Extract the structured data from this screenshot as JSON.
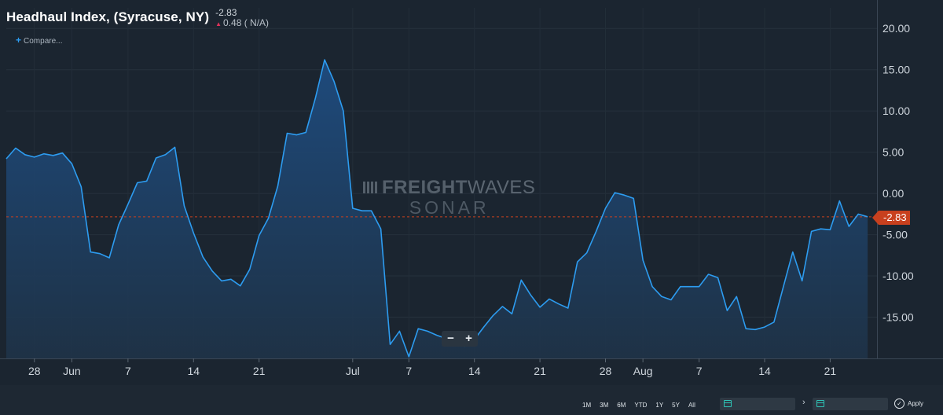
{
  "header": {
    "title": "Headhaul Index, (Syracuse, NY)",
    "last_value": "-2.83",
    "change": "0.48 ( N/A)",
    "compare_label": "Compare..."
  },
  "watermark": {
    "line1_bold": "FREIGHT",
    "line1_light": "WAVES",
    "line2": "SONAR"
  },
  "zoom": {
    "minus": "−",
    "plus": "+"
  },
  "last_badge": "-2.83",
  "toolbar": {
    "ranges": [
      "1M",
      "3M",
      "6M",
      "YTD",
      "1Y",
      "5Y",
      "All"
    ],
    "date_separator": "›",
    "apply_label": "Apply"
  },
  "colors": {
    "background": "#1b2530",
    "line": "#2d9cf0",
    "area_top": "#1e4c80",
    "area_bottom": "#1f3348",
    "last_value_line": "#c8401e",
    "badge": "#c8401e"
  },
  "chart_data": {
    "type": "area",
    "title": "Headhaul Index, (Syracuse, NY)",
    "xlabel": "",
    "ylabel": "",
    "ylim": [
      -20,
      22.5
    ],
    "grid": true,
    "y_ticks": [
      20,
      15,
      10,
      5,
      0,
      -5,
      -10,
      -15
    ],
    "y_tick_labels": [
      "20.00",
      "15.00",
      "10.00",
      "5.00",
      "0.00",
      "-5.00",
      "-10.00",
      "-15.00"
    ],
    "x_range": [
      "2019-05-25",
      "2019-08-26"
    ],
    "x_ticks": [
      {
        "date": "2019-05-28",
        "label": "28"
      },
      {
        "date": "2019-06-01",
        "label": "Jun"
      },
      {
        "date": "2019-06-07",
        "label": "7"
      },
      {
        "date": "2019-06-14",
        "label": "14"
      },
      {
        "date": "2019-06-21",
        "label": "21"
      },
      {
        "date": "2019-07-01",
        "label": "Jul"
      },
      {
        "date": "2019-07-07",
        "label": "7"
      },
      {
        "date": "2019-07-14",
        "label": "14"
      },
      {
        "date": "2019-07-21",
        "label": "21"
      },
      {
        "date": "2019-07-28",
        "label": "28"
      },
      {
        "date": "2019-08-01",
        "label": "Aug"
      },
      {
        "date": "2019-08-07",
        "label": "7"
      },
      {
        "date": "2019-08-14",
        "label": "14"
      },
      {
        "date": "2019-08-21",
        "label": "21"
      }
    ],
    "last_value": -2.83,
    "series": [
      {
        "points": [
          [
            "2019-05-25",
            4.2
          ],
          [
            "2019-05-26",
            5.5
          ],
          [
            "2019-05-27",
            4.7
          ],
          [
            "2019-05-28",
            4.4
          ],
          [
            "2019-05-29",
            4.8
          ],
          [
            "2019-05-30",
            4.6
          ],
          [
            "2019-05-31",
            4.9
          ],
          [
            "2019-06-01",
            3.6
          ],
          [
            "2019-06-02",
            0.8
          ],
          [
            "2019-06-03",
            -7.1
          ],
          [
            "2019-06-04",
            -7.3
          ],
          [
            "2019-06-05",
            -7.8
          ],
          [
            "2019-06-06",
            -3.8
          ],
          [
            "2019-06-07",
            -1.3
          ],
          [
            "2019-06-08",
            1.3
          ],
          [
            "2019-06-09",
            1.5
          ],
          [
            "2019-06-10",
            4.3
          ],
          [
            "2019-06-11",
            4.7
          ],
          [
            "2019-06-12",
            5.6
          ],
          [
            "2019-06-13",
            -1.5
          ],
          [
            "2019-06-14",
            -4.8
          ],
          [
            "2019-06-15",
            -7.7
          ],
          [
            "2019-06-16",
            -9.4
          ],
          [
            "2019-06-17",
            -10.6
          ],
          [
            "2019-06-18",
            -10.4
          ],
          [
            "2019-06-19",
            -11.2
          ],
          [
            "2019-06-20",
            -9.2
          ],
          [
            "2019-06-21",
            -5.1
          ],
          [
            "2019-06-22",
            -3.0
          ],
          [
            "2019-06-23",
            0.9
          ],
          [
            "2019-06-24",
            7.3
          ],
          [
            "2019-06-25",
            7.1
          ],
          [
            "2019-06-26",
            7.4
          ],
          [
            "2019-06-27",
            11.5
          ],
          [
            "2019-06-28",
            16.2
          ],
          [
            "2019-06-29",
            13.6
          ],
          [
            "2019-06-30",
            10.0
          ],
          [
            "2019-07-01",
            -1.8
          ],
          [
            "2019-07-02",
            -2.1
          ],
          [
            "2019-07-03",
            -2.1
          ],
          [
            "2019-07-04",
            -4.3
          ],
          [
            "2019-07-05",
            -18.3
          ],
          [
            "2019-07-06",
            -16.7
          ],
          [
            "2019-07-07",
            -19.8
          ],
          [
            "2019-07-08",
            -16.4
          ],
          [
            "2019-07-09",
            -16.7
          ],
          [
            "2019-07-10",
            -17.2
          ],
          [
            "2019-07-11",
            -17.6
          ],
          [
            "2019-07-12",
            -17.9
          ],
          [
            "2019-07-13",
            -18.5
          ],
          [
            "2019-07-14",
            -17.7
          ],
          [
            "2019-07-15",
            -16.2
          ],
          [
            "2019-07-16",
            -14.8
          ],
          [
            "2019-07-17",
            -13.7
          ],
          [
            "2019-07-18",
            -14.6
          ],
          [
            "2019-07-19",
            -10.5
          ],
          [
            "2019-07-20",
            -12.3
          ],
          [
            "2019-07-21",
            -13.8
          ],
          [
            "2019-07-22",
            -12.8
          ],
          [
            "2019-07-23",
            -13.4
          ],
          [
            "2019-07-24",
            -13.9
          ],
          [
            "2019-07-25",
            -8.3
          ],
          [
            "2019-07-26",
            -7.2
          ],
          [
            "2019-07-27",
            -4.6
          ],
          [
            "2019-07-28",
            -1.8
          ],
          [
            "2019-07-29",
            0.1
          ],
          [
            "2019-07-30",
            -0.2
          ],
          [
            "2019-07-31",
            -0.6
          ],
          [
            "2019-08-01",
            -8.1
          ],
          [
            "2019-08-02",
            -11.3
          ],
          [
            "2019-08-03",
            -12.5
          ],
          [
            "2019-08-04",
            -12.9
          ],
          [
            "2019-08-05",
            -11.3
          ],
          [
            "2019-08-06",
            -11.3
          ],
          [
            "2019-08-07",
            -11.3
          ],
          [
            "2019-08-08",
            -9.8
          ],
          [
            "2019-08-09",
            -10.2
          ],
          [
            "2019-08-10",
            -14.2
          ],
          [
            "2019-08-11",
            -12.5
          ],
          [
            "2019-08-12",
            -16.4
          ],
          [
            "2019-08-13",
            -16.5
          ],
          [
            "2019-08-14",
            -16.2
          ],
          [
            "2019-08-15",
            -15.6
          ],
          [
            "2019-08-16",
            -11.3
          ],
          [
            "2019-08-17",
            -7.1
          ],
          [
            "2019-08-18",
            -10.6
          ],
          [
            "2019-08-19",
            -4.6
          ],
          [
            "2019-08-20",
            -4.3
          ],
          [
            "2019-08-21",
            -4.4
          ],
          [
            "2019-08-22",
            -0.9
          ],
          [
            "2019-08-23",
            -4.0
          ],
          [
            "2019-08-24",
            -2.5
          ],
          [
            "2019-08-25",
            -2.83
          ]
        ]
      }
    ]
  }
}
